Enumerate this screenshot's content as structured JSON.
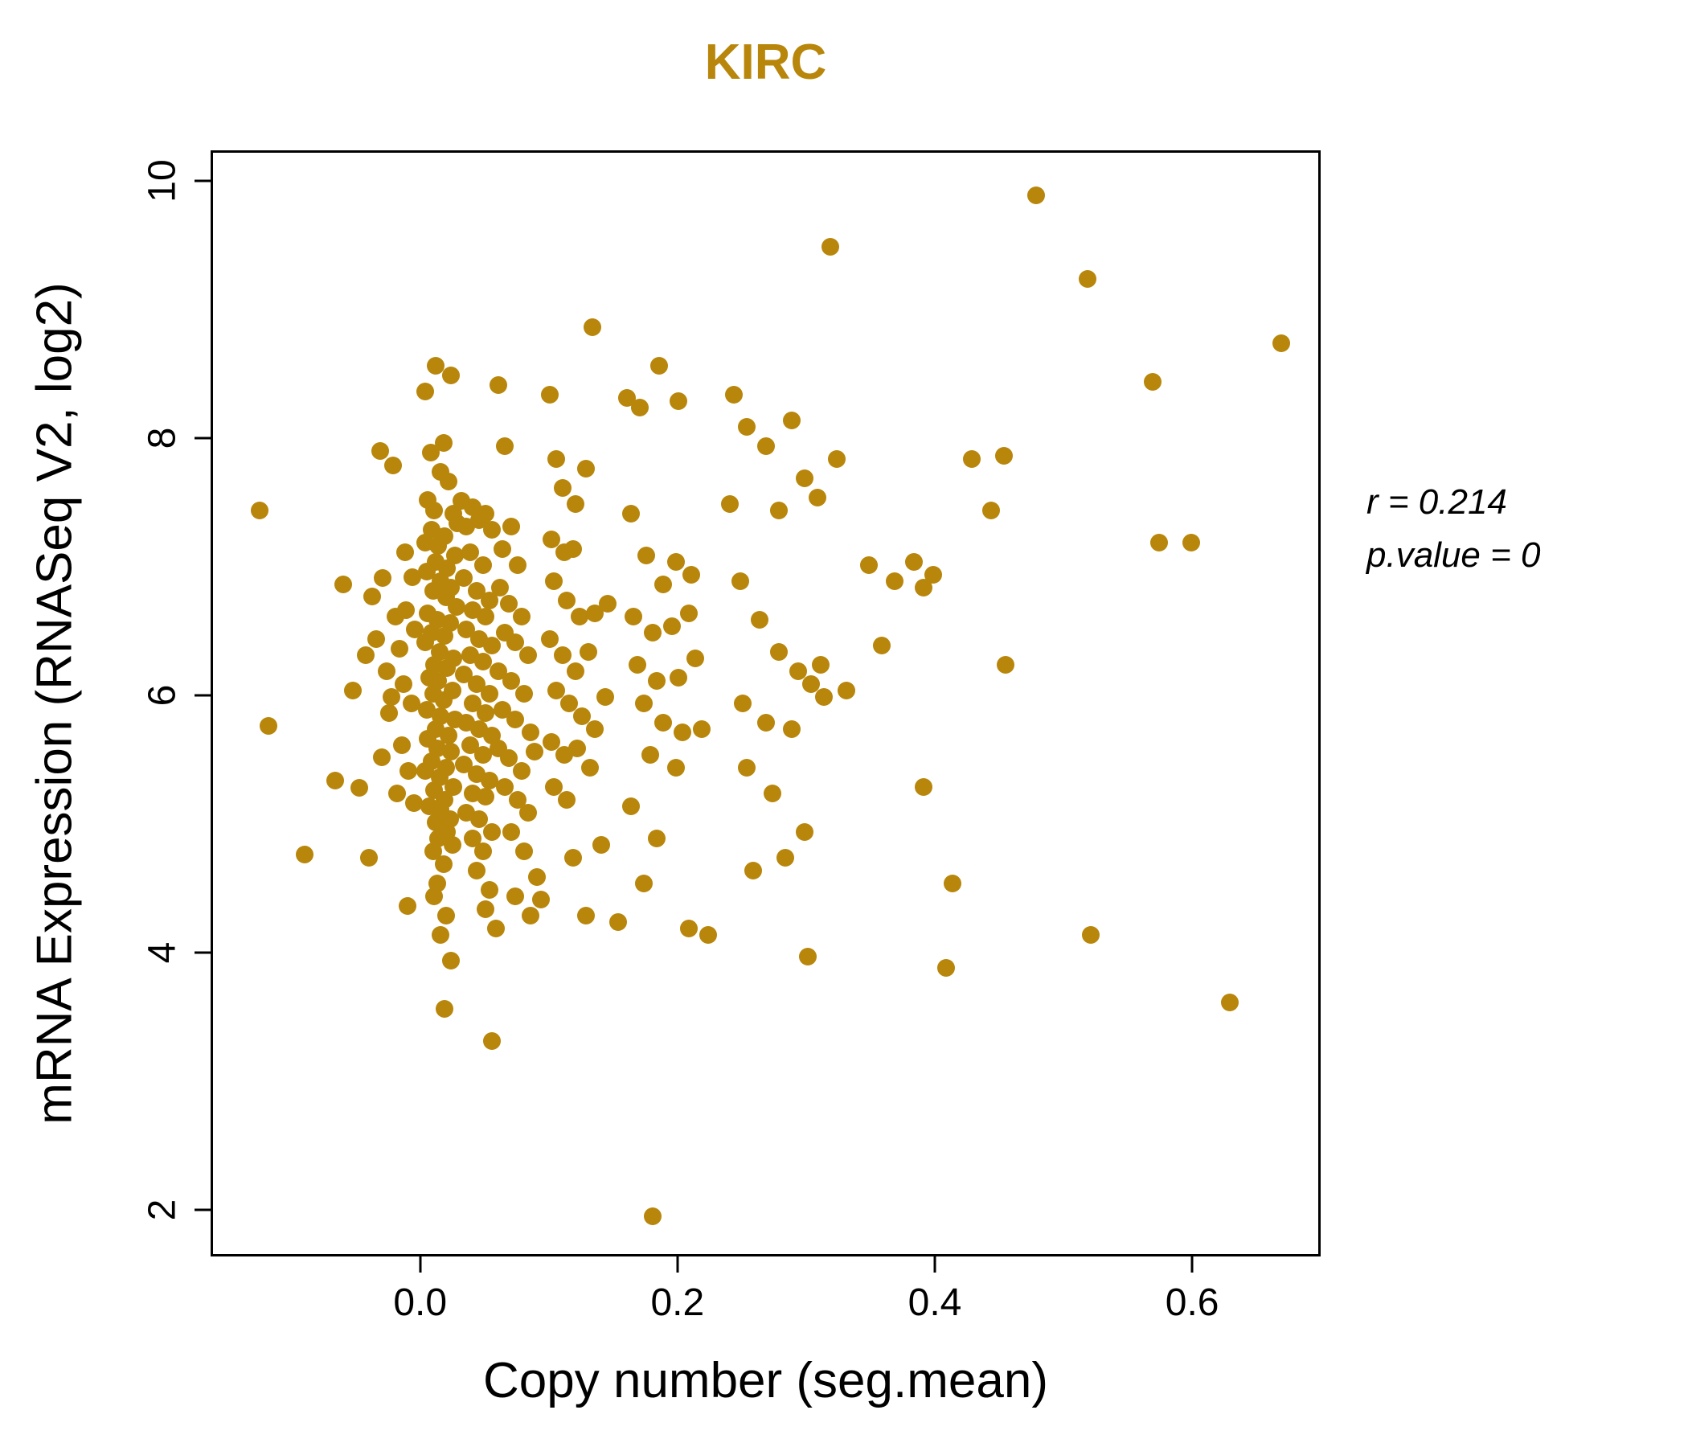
{
  "figure": {
    "annotation": {
      "line1": "r = 0.214",
      "line2": "p.value = 0"
    }
  },
  "colors": {
    "point": "#B8860B",
    "title_color": "#B8860B",
    "axis": "#000000"
  },
  "chart_data": {
    "type": "scatter",
    "title": "KIRC",
    "xlabel": "Copy number (seg.mean)",
    "ylabel": "mRNA Expression (RNASeq V2, log2)",
    "x_ticks": [
      0.0,
      0.2,
      0.4,
      0.6
    ],
    "x_tick_labels": [
      "0.0",
      "0.2",
      "0.4",
      "0.6"
    ],
    "y_ticks": [
      2,
      4,
      6,
      8,
      10
    ],
    "y_tick_labels": [
      "2",
      "4",
      "6",
      "8",
      "10"
    ],
    "xlim": [
      -0.161,
      0.698
    ],
    "ylim": [
      1.656,
      10.219
    ],
    "grid": false,
    "legend": "none",
    "stats": {
      "r": 0.214,
      "p_value": 0
    },
    "points": [
      [
        -0.125,
        7.44
      ],
      [
        -0.118,
        5.76
      ],
      [
        -0.09,
        4.76
      ],
      [
        -0.066,
        5.34
      ],
      [
        -0.06,
        6.86
      ],
      [
        -0.052,
        6.04
      ],
      [
        -0.047,
        5.28
      ],
      [
        -0.042,
        6.31
      ],
      [
        -0.04,
        4.74
      ],
      [
        -0.037,
        6.77
      ],
      [
        -0.031,
        7.9
      ],
      [
        -0.029,
        6.91
      ],
      [
        -0.034,
        6.44
      ],
      [
        -0.03,
        5.52
      ],
      [
        -0.026,
        6.19
      ],
      [
        -0.024,
        5.86
      ],
      [
        -0.021,
        7.79
      ],
      [
        -0.019,
        6.61
      ],
      [
        -0.022,
        5.99
      ],
      [
        -0.018,
        5.24
      ],
      [
        -0.016,
        6.36
      ],
      [
        -0.014,
        5.61
      ],
      [
        -0.012,
        7.11
      ],
      [
        -0.011,
        6.66
      ],
      [
        -0.013,
        6.09
      ],
      [
        -0.009,
        5.41
      ],
      [
        -0.01,
        4.36
      ],
      [
        -0.006,
        6.92
      ],
      [
        -0.004,
        6.51
      ],
      [
        -0.007,
        5.94
      ],
      [
        -0.005,
        5.16
      ],
      [
        0.004,
        8.36
      ],
      [
        0.012,
        8.56
      ],
      [
        0.024,
        8.49
      ],
      [
        0.018,
        7.96
      ],
      [
        0.008,
        7.89
      ],
      [
        0.016,
        7.74
      ],
      [
        0.022,
        7.66
      ],
      [
        0.006,
        7.52
      ],
      [
        0.011,
        7.44
      ],
      [
        0.026,
        7.41
      ],
      [
        0.029,
        7.34
      ],
      [
        0.009,
        7.29
      ],
      [
        0.019,
        7.24
      ],
      [
        0.004,
        7.19
      ],
      [
        0.014,
        7.16
      ],
      [
        0.027,
        7.09
      ],
      [
        0.012,
        7.04
      ],
      [
        0.021,
        6.99
      ],
      [
        0.005,
        6.96
      ],
      [
        0.016,
        6.89
      ],
      [
        0.024,
        6.84
      ],
      [
        0.01,
        6.81
      ],
      [
        0.02,
        6.76
      ],
      [
        0.028,
        6.69
      ],
      [
        0.006,
        6.64
      ],
      [
        0.013,
        6.59
      ],
      [
        0.023,
        6.56
      ],
      [
        0.009,
        6.49
      ],
      [
        0.019,
        6.46
      ],
      [
        0.004,
        6.41
      ],
      [
        0.015,
        6.34
      ],
      [
        0.026,
        6.29
      ],
      [
        0.011,
        6.24
      ],
      [
        0.021,
        6.21
      ],
      [
        0.007,
        6.14
      ],
      [
        0.014,
        6.11
      ],
      [
        0.025,
        6.04
      ],
      [
        0.01,
        6.01
      ],
      [
        0.018,
        5.96
      ],
      [
        0.005,
        5.89
      ],
      [
        0.016,
        5.84
      ],
      [
        0.027,
        5.81
      ],
      [
        0.012,
        5.74
      ],
      [
        0.022,
        5.69
      ],
      [
        0.006,
        5.66
      ],
      [
        0.013,
        5.59
      ],
      [
        0.024,
        5.56
      ],
      [
        0.009,
        5.49
      ],
      [
        0.02,
        5.44
      ],
      [
        0.004,
        5.41
      ],
      [
        0.015,
        5.36
      ],
      [
        0.026,
        5.29
      ],
      [
        0.011,
        5.26
      ],
      [
        0.019,
        5.19
      ],
      [
        0.007,
        5.14
      ],
      [
        0.016,
        5.11
      ],
      [
        0.023,
        5.04
      ],
      [
        0.012,
        5.01
      ],
      [
        0.021,
        4.94
      ],
      [
        0.014,
        4.89
      ],
      [
        0.025,
        4.84
      ],
      [
        0.01,
        4.79
      ],
      [
        0.018,
        4.69
      ],
      [
        0.013,
        4.54
      ],
      [
        0.011,
        4.44
      ],
      [
        0.02,
        4.29
      ],
      [
        0.016,
        4.14
      ],
      [
        0.024,
        3.94
      ],
      [
        0.019,
        3.56
      ],
      [
        0.032,
        7.51
      ],
      [
        0.036,
        7.31
      ],
      [
        0.041,
        7.46
      ],
      [
        0.046,
        7.36
      ],
      [
        0.051,
        7.41
      ],
      [
        0.056,
        7.29
      ],
      [
        0.039,
        7.11
      ],
      [
        0.049,
        7.01
      ],
      [
        0.034,
        6.91
      ],
      [
        0.044,
        6.81
      ],
      [
        0.054,
        6.74
      ],
      [
        0.041,
        6.66
      ],
      [
        0.051,
        6.61
      ],
      [
        0.036,
        6.51
      ],
      [
        0.046,
        6.44
      ],
      [
        0.056,
        6.39
      ],
      [
        0.039,
        6.31
      ],
      [
        0.049,
        6.26
      ],
      [
        0.034,
        6.16
      ],
      [
        0.044,
        6.09
      ],
      [
        0.054,
        6.01
      ],
      [
        0.041,
        5.94
      ],
      [
        0.051,
        5.86
      ],
      [
        0.036,
        5.79
      ],
      [
        0.046,
        5.74
      ],
      [
        0.056,
        5.69
      ],
      [
        0.039,
        5.61
      ],
      [
        0.049,
        5.54
      ],
      [
        0.034,
        5.46
      ],
      [
        0.044,
        5.39
      ],
      [
        0.054,
        5.34
      ],
      [
        0.041,
        5.24
      ],
      [
        0.051,
        5.21
      ],
      [
        0.036,
        5.09
      ],
      [
        0.046,
        5.04
      ],
      [
        0.056,
        4.94
      ],
      [
        0.041,
        4.89
      ],
      [
        0.049,
        4.79
      ],
      [
        0.044,
        4.64
      ],
      [
        0.054,
        4.49
      ],
      [
        0.051,
        4.34
      ],
      [
        0.059,
        4.19
      ],
      [
        0.056,
        3.31
      ],
      [
        0.061,
        8.41
      ],
      [
        0.066,
        7.94
      ],
      [
        0.071,
        7.31
      ],
      [
        0.064,
        7.14
      ],
      [
        0.076,
        7.01
      ],
      [
        0.062,
        6.84
      ],
      [
        0.069,
        6.71
      ],
      [
        0.079,
        6.61
      ],
      [
        0.066,
        6.49
      ],
      [
        0.074,
        6.41
      ],
      [
        0.084,
        6.31
      ],
      [
        0.061,
        6.19
      ],
      [
        0.071,
        6.11
      ],
      [
        0.081,
        6.01
      ],
      [
        0.064,
        5.89
      ],
      [
        0.074,
        5.81
      ],
      [
        0.086,
        5.71
      ],
      [
        0.061,
        5.59
      ],
      [
        0.069,
        5.51
      ],
      [
        0.079,
        5.41
      ],
      [
        0.089,
        5.56
      ],
      [
        0.066,
        5.29
      ],
      [
        0.076,
        5.19
      ],
      [
        0.084,
        5.09
      ],
      [
        0.071,
        4.94
      ],
      [
        0.081,
        4.79
      ],
      [
        0.091,
        4.59
      ],
      [
        0.074,
        4.44
      ],
      [
        0.086,
        4.29
      ],
      [
        0.094,
        4.41
      ],
      [
        0.101,
        8.34
      ],
      [
        0.106,
        7.84
      ],
      [
        0.111,
        7.61
      ],
      [
        0.121,
        7.49
      ],
      [
        0.129,
        7.76
      ],
      [
        0.134,
        8.86
      ],
      [
        0.102,
        7.21
      ],
      [
        0.112,
        7.11
      ],
      [
        0.119,
        7.14
      ],
      [
        0.104,
        6.89
      ],
      [
        0.114,
        6.74
      ],
      [
        0.124,
        6.61
      ],
      [
        0.136,
        6.64
      ],
      [
        0.146,
        6.71
      ],
      [
        0.101,
        6.44
      ],
      [
        0.111,
        6.31
      ],
      [
        0.121,
        6.19
      ],
      [
        0.131,
        6.34
      ],
      [
        0.106,
        6.04
      ],
      [
        0.116,
        5.94
      ],
      [
        0.126,
        5.84
      ],
      [
        0.136,
        5.74
      ],
      [
        0.144,
        5.99
      ],
      [
        0.102,
        5.64
      ],
      [
        0.112,
        5.54
      ],
      [
        0.122,
        5.59
      ],
      [
        0.132,
        5.44
      ],
      [
        0.104,
        5.29
      ],
      [
        0.114,
        5.19
      ],
      [
        0.141,
        4.84
      ],
      [
        0.119,
        4.74
      ],
      [
        0.129,
        4.29
      ],
      [
        0.161,
        8.31
      ],
      [
        0.171,
        8.24
      ],
      [
        0.186,
        8.56
      ],
      [
        0.201,
        8.29
      ],
      [
        0.164,
        7.41
      ],
      [
        0.176,
        7.09
      ],
      [
        0.189,
        6.86
      ],
      [
        0.199,
        7.04
      ],
      [
        0.211,
        6.94
      ],
      [
        0.166,
        6.61
      ],
      [
        0.181,
        6.49
      ],
      [
        0.196,
        6.54
      ],
      [
        0.209,
        6.64
      ],
      [
        0.169,
        6.24
      ],
      [
        0.184,
        6.11
      ],
      [
        0.201,
        6.14
      ],
      [
        0.214,
        6.29
      ],
      [
        0.174,
        5.94
      ],
      [
        0.189,
        5.79
      ],
      [
        0.204,
        5.71
      ],
      [
        0.219,
        5.74
      ],
      [
        0.179,
        5.54
      ],
      [
        0.199,
        5.44
      ],
      [
        0.164,
        5.14
      ],
      [
        0.184,
        4.89
      ],
      [
        0.154,
        4.24
      ],
      [
        0.174,
        4.54
      ],
      [
        0.209,
        4.19
      ],
      [
        0.224,
        4.14
      ],
      [
        0.181,
        1.95
      ],
      [
        0.244,
        8.34
      ],
      [
        0.254,
        8.09
      ],
      [
        0.269,
        7.94
      ],
      [
        0.289,
        8.14
      ],
      [
        0.241,
        7.49
      ],
      [
        0.279,
        7.44
      ],
      [
        0.299,
        7.69
      ],
      [
        0.309,
        7.54
      ],
      [
        0.319,
        9.49
      ],
      [
        0.249,
        6.89
      ],
      [
        0.264,
        6.59
      ],
      [
        0.279,
        6.34
      ],
      [
        0.294,
        6.19
      ],
      [
        0.304,
        6.09
      ],
      [
        0.311,
        6.24
      ],
      [
        0.251,
        5.94
      ],
      [
        0.269,
        5.79
      ],
      [
        0.289,
        5.74
      ],
      [
        0.314,
        5.99
      ],
      [
        0.254,
        5.44
      ],
      [
        0.274,
        5.24
      ],
      [
        0.299,
        4.94
      ],
      [
        0.259,
        4.64
      ],
      [
        0.284,
        4.74
      ],
      [
        0.301,
        3.97
      ],
      [
        0.324,
        7.84
      ],
      [
        0.331,
        6.04
      ],
      [
        0.349,
        7.01
      ],
      [
        0.369,
        6.89
      ],
      [
        0.384,
        7.04
      ],
      [
        0.391,
        6.84
      ],
      [
        0.359,
        6.39
      ],
      [
        0.391,
        5.29
      ],
      [
        0.409,
        3.88
      ],
      [
        0.414,
        4.54
      ],
      [
        0.399,
        6.94
      ],
      [
        0.429,
        7.84
      ],
      [
        0.444,
        7.44
      ],
      [
        0.454,
        7.86
      ],
      [
        0.455,
        6.24
      ],
      [
        0.479,
        9.89
      ],
      [
        0.519,
        9.24
      ],
      [
        0.521,
        4.14
      ],
      [
        0.569,
        8.44
      ],
      [
        0.574,
        7.19
      ],
      [
        0.599,
        7.19
      ],
      [
        0.629,
        3.61
      ],
      [
        0.669,
        8.74
      ]
    ]
  }
}
